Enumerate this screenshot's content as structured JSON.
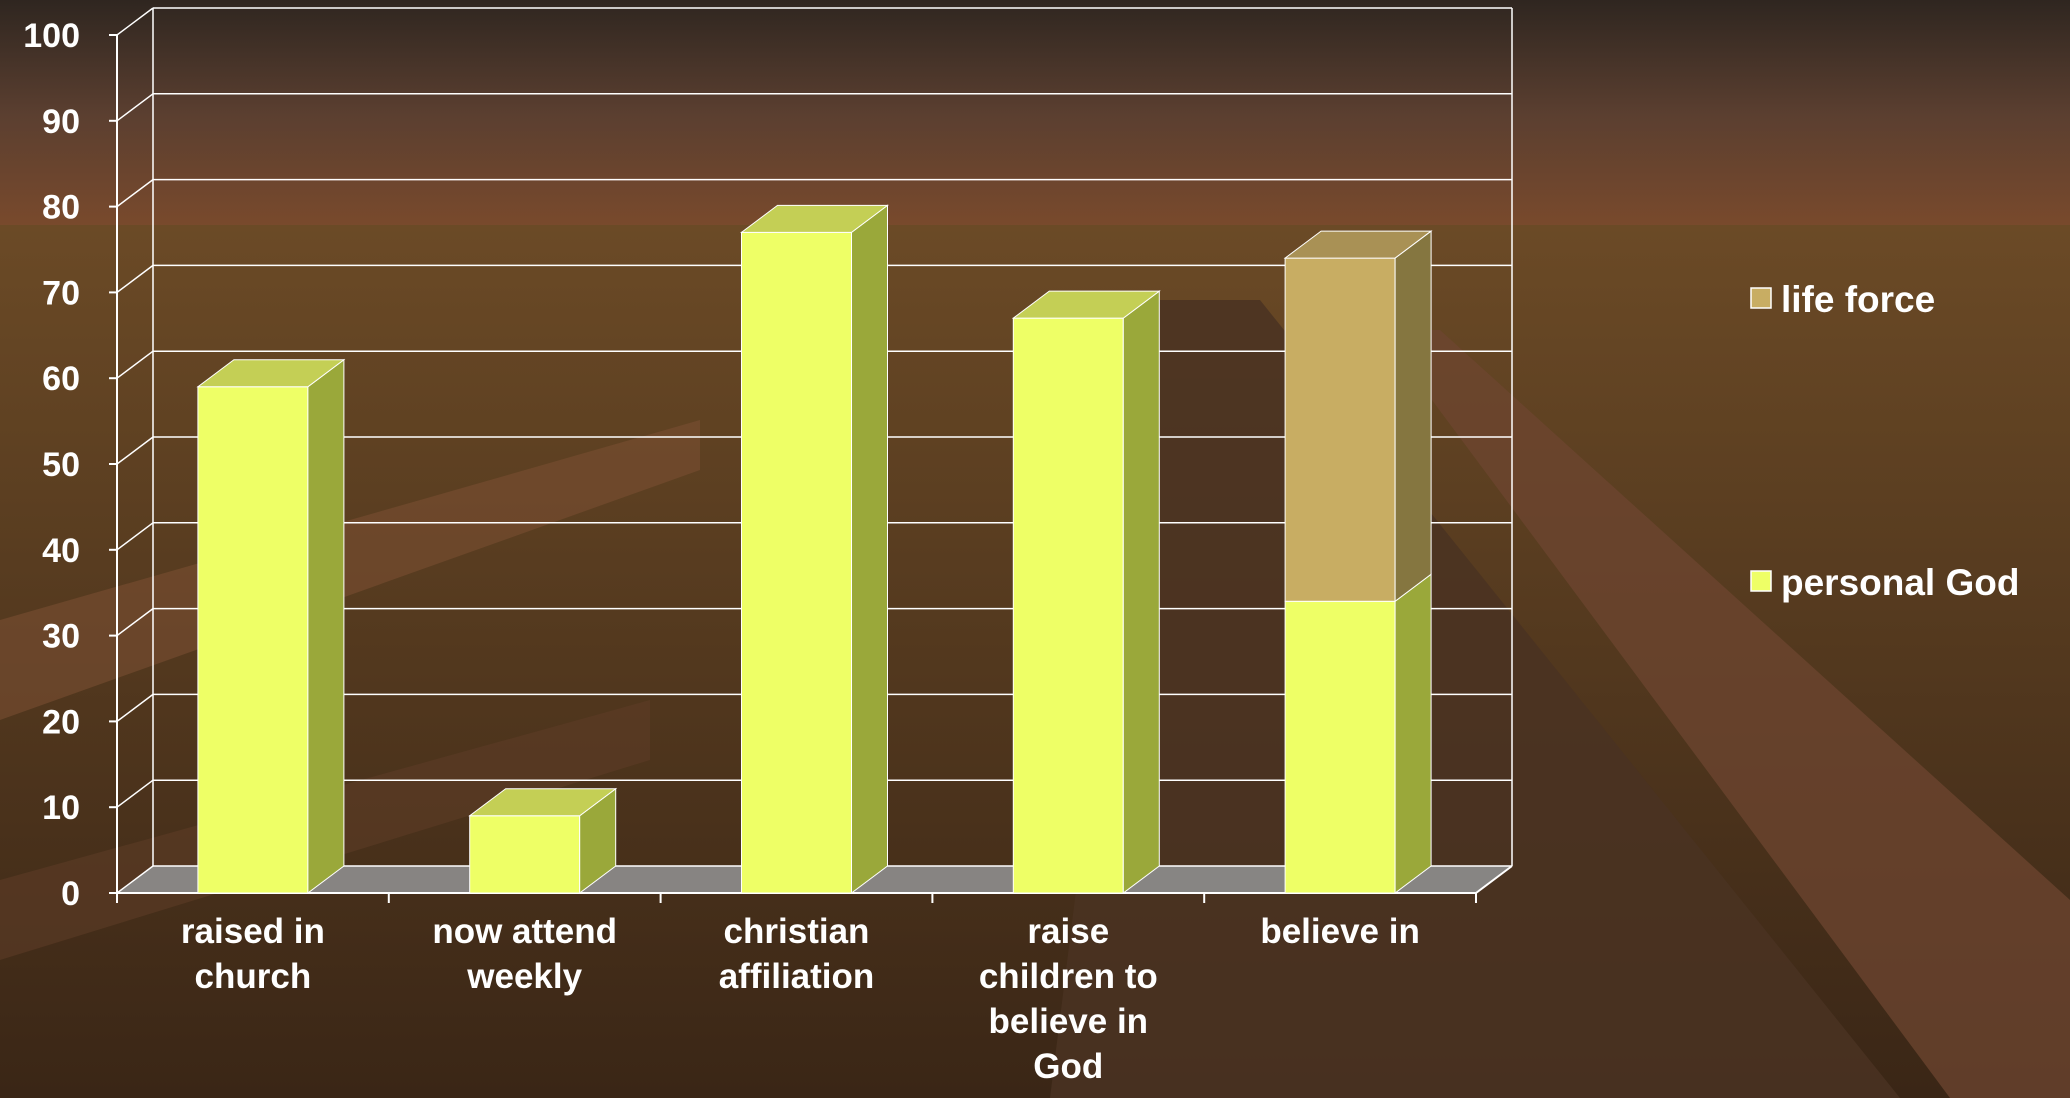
{
  "chart_data": {
    "type": "bar",
    "stacked": true,
    "three_d": true,
    "categories": [
      [
        "raised in",
        "church"
      ],
      [
        "now attend",
        "weekly"
      ],
      [
        "christian",
        "affiliation"
      ],
      [
        "raise",
        "children to",
        "believe in",
        "God"
      ],
      [
        "believe in"
      ]
    ],
    "series": [
      {
        "name": "personal God",
        "values": [
          59,
          9,
          77,
          67,
          34
        ],
        "color": "#eeff66",
        "side_color": "#9aa83a",
        "top_color": "#c4cf55"
      },
      {
        "name": "life force",
        "values": [
          0,
          0,
          0,
          0,
          40
        ],
        "color": "#c8ad63",
        "side_color": "#857640",
        "top_color": "#a99155"
      }
    ],
    "yticks": [
      "0",
      "10",
      "20",
      "30",
      "40",
      "50",
      "60",
      "70",
      "80",
      "90",
      "100"
    ],
    "ylim": [
      0,
      100
    ],
    "grid": true,
    "legend_position": "right",
    "legend_order": [
      "life force",
      "personal God"
    ],
    "title": "",
    "xlabel": "",
    "ylabel": ""
  },
  "colors": {
    "grid": "#ffffff",
    "floor": "#8e8e8e",
    "text": "#ffffff"
  }
}
